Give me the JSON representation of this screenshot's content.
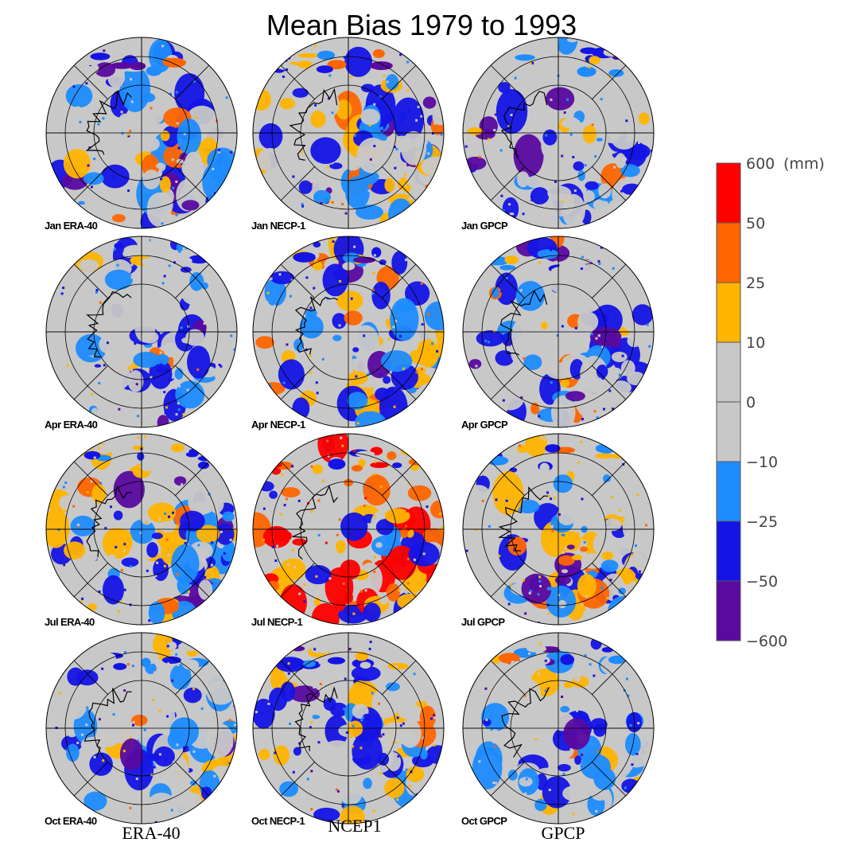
{
  "title": "Mean Bias 1979 to 1993",
  "legend": {
    "unit": "(mm)",
    "labels": [
      "600",
      "50",
      "25",
      "10",
      "0",
      "−10",
      "−25",
      "−50",
      "−600"
    ],
    "colors": [
      "#ff0000",
      "#ff6600",
      "#ffb400",
      "#c8c8c8",
      "#c8c8c8",
      "#1e8cff",
      "#1414e6",
      "#5a0aa0"
    ]
  },
  "colors": {
    "land_gray": "#c8c8c8",
    "grid": "#000000"
  },
  "columns": [
    "ERA-40",
    "NCEP1",
    "GPCP"
  ],
  "panels": [
    {
      "label": "Jan ERA-40",
      "bias": "low"
    },
    {
      "label": "Jan NECP-1",
      "bias": "mixed"
    },
    {
      "label": "Jan GPCP",
      "bias": "low"
    },
    {
      "label": "Apr ERA-40",
      "bias": "low"
    },
    {
      "label": "Apr NECP-1",
      "bias": "mixed"
    },
    {
      "label": "Apr GPCP",
      "bias": "low"
    },
    {
      "label": "Jul ERA-40",
      "bias": "mixed"
    },
    {
      "label": "Jul NECP-1",
      "bias": "high"
    },
    {
      "label": "Jul GPCP",
      "bias": "mixed"
    },
    {
      "label": "Oct ERA-40",
      "bias": "low"
    },
    {
      "label": "Oct NECP-1",
      "bias": "mixed"
    },
    {
      "label": "Oct GPCP",
      "bias": "low"
    }
  ]
}
